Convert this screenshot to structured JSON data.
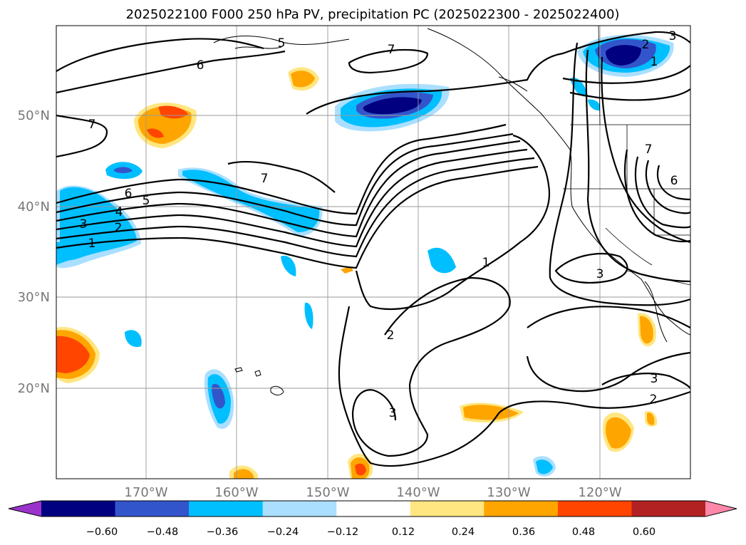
{
  "title": "2025022100 F000 250 hPa PV, precipitation PC (2025022300 - 2025022400)",
  "map": {
    "lat_labels": [
      "50°N",
      "40°N",
      "30°N",
      "20°N"
    ],
    "lon_labels": [
      "170°W",
      "160°W",
      "150°W",
      "140°W",
      "130°W",
      "120°W"
    ],
    "gridlines": true
  },
  "colorbar": {
    "ticks": [
      "−0.60",
      "−0.48",
      "−0.36",
      "−0.24",
      "−0.12",
      "0.12",
      "0.24",
      "0.36",
      "0.48",
      "0.60"
    ],
    "colors": [
      "#9933cc",
      "#000080",
      "#3355cc",
      "#00bfff",
      "#aadfff",
      "#ffffff",
      "#ffe680",
      "#ffa500",
      "#ff4500",
      "#b22222",
      "#ff88aa"
    ],
    "extend": "both"
  },
  "contour_labels": [
    "1",
    "2",
    "3",
    "4",
    "5",
    "6",
    "7"
  ],
  "colors": {
    "neg_dark": "#000080",
    "neg_mid": "#3355cc",
    "neg": "#00bfff",
    "neg_light": "#aadfff",
    "pos_light": "#ffe680",
    "pos": "#ffa500",
    "pos_mid": "#ff4500"
  }
}
